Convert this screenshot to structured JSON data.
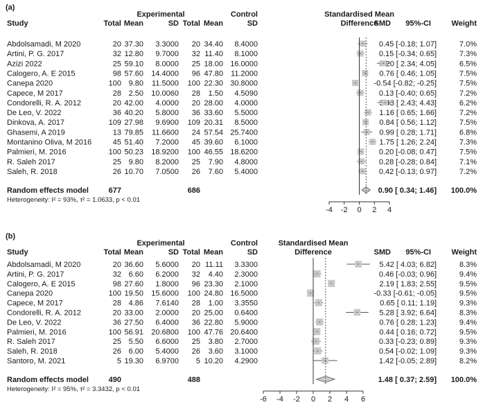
{
  "chart_data": [
    {
      "type": "forest",
      "panel_label": "(a)",
      "headers": {
        "group1": "Experimental",
        "group2": "Control",
        "study": "Study",
        "total": "Total",
        "mean": "Mean",
        "sd": "SD",
        "effect_line1": "Standardised Mean",
        "effect_line2": "Difference",
        "smd": "SMD",
        "ci": "95%-CI",
        "weight": "Weight"
      },
      "studies": [
        {
          "study": "Abdolsamadi, M 2020",
          "e_total": "20",
          "e_mean": "37.30",
          "e_sd": "3.3000",
          "c_total": "20",
          "c_mean": "34.40",
          "c_sd": "8.4000",
          "smd": 0.45,
          "lower": -0.18,
          "upper": 1.07,
          "ci_text": "0.45 [-0.18; 1.07]",
          "weight": "7.0%"
        },
        {
          "study": "Artini, P. G. 2017",
          "e_total": "32",
          "e_mean": "12.80",
          "e_sd": "9.7000",
          "c_total": "32",
          "c_mean": "11.40",
          "c_sd": "8.1000",
          "smd": 0.15,
          "lower": -0.34,
          "upper": 0.65,
          "ci_text": "0.15 [-0.34; 0.65]",
          "weight": "7.3%"
        },
        {
          "study": "Azizi 2022",
          "e_total": "25",
          "e_mean": "59.10",
          "e_sd": "8.0000",
          "c_total": "25",
          "c_mean": "18.00",
          "c_sd": "16.0000",
          "smd": 3.2,
          "lower": 2.34,
          "upper": 4.05,
          "ci_text": "3.20 [ 2.34; 4.05]",
          "weight": "6.5%"
        },
        {
          "study": "Calogero, A. E 2015",
          "e_total": "98",
          "e_mean": "57.60",
          "e_sd": "14.4000",
          "c_total": "96",
          "c_mean": "47.80",
          "c_sd": "11.2000",
          "smd": 0.76,
          "lower": 0.46,
          "upper": 1.05,
          "ci_text": "0.76 [ 0.46; 1.05]",
          "weight": "7.5%"
        },
        {
          "study": "Canepa 2020",
          "e_total": "100",
          "e_mean": "9.80",
          "e_sd": "11.5000",
          "c_total": "100",
          "c_mean": "22.30",
          "c_sd": "30.8000",
          "smd": -0.54,
          "lower": -0.82,
          "upper": -0.25,
          "ci_text": "-0.54 [-0.82; -0.25]",
          "weight": "7.5%"
        },
        {
          "study": "Capece, M 2017",
          "e_total": "28",
          "e_mean": "2.50",
          "e_sd": "10.0060",
          "c_total": "28",
          "c_mean": "1.50",
          "c_sd": "4.5090",
          "smd": 0.13,
          "lower": -0.4,
          "upper": 0.65,
          "ci_text": "0.13 [-0.40; 0.65]",
          "weight": "7.2%"
        },
        {
          "study": "Condorelli, R. A. 2012",
          "e_total": "20",
          "e_mean": "42.00",
          "e_sd": "4.0000",
          "c_total": "20",
          "c_mean": "28.00",
          "c_sd": "4.0000",
          "smd": 3.43,
          "lower": 2.43,
          "upper": 4.43,
          "ci_text": "3.43 [ 2.43; 4.43]",
          "weight": "6.2%"
        },
        {
          "study": "De Leo, V. 2022",
          "e_total": "36",
          "e_mean": "40.20",
          "e_sd": "5.8000",
          "c_total": "36",
          "c_mean": "33.60",
          "c_sd": "5.5000",
          "smd": 1.16,
          "lower": 0.65,
          "upper": 1.66,
          "ci_text": "1.16 [ 0.65; 1.66]",
          "weight": "7.2%"
        },
        {
          "study": "Dinkova, A. 2017",
          "e_total": "109",
          "e_mean": "27.98",
          "e_sd": "9.6900",
          "c_total": "109",
          "c_mean": "20.31",
          "c_sd": "8.5000",
          "smd": 0.84,
          "lower": 0.56,
          "upper": 1.12,
          "ci_text": "0.84 [ 0.56; 1.12]",
          "weight": "7.5%"
        },
        {
          "study": "Ghasemi, A 2019",
          "e_total": "13",
          "e_mean": "79.85",
          "e_sd": "11.6600",
          "c_total": "24",
          "c_mean": "57.54",
          "c_sd": "25.7400",
          "smd": 0.99,
          "lower": 0.28,
          "upper": 1.71,
          "ci_text": "0.99 [ 0.28; 1.71]",
          "weight": "6.8%"
        },
        {
          "study": "Montanino Oliva, M 2016",
          "e_total": "45",
          "e_mean": "51.40",
          "e_sd": "7.2000",
          "c_total": "45",
          "c_mean": "39.60",
          "c_sd": "6.1000",
          "smd": 1.75,
          "lower": 1.26,
          "upper": 2.24,
          "ci_text": "1.75 [ 1.26; 2.24]",
          "weight": "7.3%"
        },
        {
          "study": "Palmieri, M. 2016",
          "e_total": "100",
          "e_mean": "50.23",
          "e_sd": "18.9200",
          "c_total": "100",
          "c_mean": "46.55",
          "c_sd": "18.6200",
          "smd": 0.2,
          "lower": -0.08,
          "upper": 0.47,
          "ci_text": "0.20 [-0.08; 0.47]",
          "weight": "7.5%"
        },
        {
          "study": "R. Saleh 2017",
          "e_total": "25",
          "e_mean": "9.80",
          "e_sd": "8.2000",
          "c_total": "25",
          "c_mean": "7.90",
          "c_sd": "4.8000",
          "smd": 0.28,
          "lower": -0.28,
          "upper": 0.84,
          "ci_text": "0.28 [-0.28; 0.84]",
          "weight": "7.1%"
        },
        {
          "study": "Saleh, R. 2018",
          "e_total": "26",
          "e_mean": "10.70",
          "e_sd": "7.0500",
          "c_total": "26",
          "c_mean": "7.60",
          "c_sd": "5.4000",
          "smd": 0.42,
          "lower": -0.13,
          "upper": 0.97,
          "ci_text": "0.42 [-0.13; 0.97]",
          "weight": "7.2%"
        }
      ],
      "pooled": {
        "label": "Random effects model",
        "e_total": "677",
        "c_total": "686",
        "smd": 0.9,
        "lower": 0.34,
        "upper": 1.46,
        "ci_text": "0.90 [ 0.34; 1.46]",
        "weight": "100.0%"
      },
      "heterogeneity": {
        "prefix": "Heterogeneity: ",
        "i2": "I² = 93%",
        "tau2": "τ² = 1.0633",
        "p": "p < 0.01"
      },
      "xaxis": {
        "ticks": [
          -4,
          -2,
          0,
          2,
          4
        ],
        "xlim": [
          -4,
          4
        ]
      }
    },
    {
      "type": "forest",
      "panel_label": "(b)",
      "headers": {
        "group1": "Experimental",
        "group2": "Control",
        "study": "Study",
        "total": "Total",
        "mean": "Mean",
        "sd": "SD",
        "effect_line1": "Standardised Mean",
        "effect_line2": "Difference",
        "smd": "SMD",
        "ci": "95%-CI",
        "weight": "Weight"
      },
      "studies": [
        {
          "study": "Abdolsamadi, M 2020",
          "e_total": "20",
          "e_mean": "36.60",
          "e_sd": "5.6000",
          "c_total": "20",
          "c_mean": "11.11",
          "c_sd": "3.3300",
          "smd": 5.42,
          "lower": 4.03,
          "upper": 6.82,
          "ci_text": "5.42 [ 4.03; 6.82]",
          "weight": "8.3%"
        },
        {
          "study": "Artini, P. G. 2017",
          "e_total": "32",
          "e_mean": "6.60",
          "e_sd": "6.2000",
          "c_total": "32",
          "c_mean": "4.40",
          "c_sd": "2.3000",
          "smd": 0.46,
          "lower": -0.03,
          "upper": 0.96,
          "ci_text": "0.46 [-0.03; 0.96]",
          "weight": "9.4%"
        },
        {
          "study": "Calogero, A. E 2015",
          "e_total": "98",
          "e_mean": "27.60",
          "e_sd": "1.8000",
          "c_total": "96",
          "c_mean": "23.30",
          "c_sd": "2.1000",
          "smd": 2.19,
          "lower": 1.83,
          "upper": 2.55,
          "ci_text": "2.19 [ 1.83; 2.55]",
          "weight": "9.5%"
        },
        {
          "study": "Canepa 2020",
          "e_total": "100",
          "e_mean": "19.50",
          "e_sd": "15.6000",
          "c_total": "100",
          "c_mean": "24.80",
          "c_sd": "16.5000",
          "smd": -0.33,
          "lower": -0.61,
          "upper": -0.05,
          "ci_text": "-0.33 [-0.61; -0.05]",
          "weight": "9.5%"
        },
        {
          "study": "Capece, M 2017",
          "e_total": "28",
          "e_mean": "4.86",
          "e_sd": "7.6140",
          "c_total": "28",
          "c_mean": "1.00",
          "c_sd": "3.3550",
          "smd": 0.65,
          "lower": 0.11,
          "upper": 1.19,
          "ci_text": "0.65 [ 0.11; 1.19]",
          "weight": "9.3%"
        },
        {
          "study": "Condorelli, R. A. 2012",
          "e_total": "20",
          "e_mean": "33.00",
          "e_sd": "2.0000",
          "c_total": "20",
          "c_mean": "25.00",
          "c_sd": "0.6400",
          "smd": 5.28,
          "lower": 3.92,
          "upper": 6.64,
          "ci_text": "5.28 [ 3.92; 6.64]",
          "weight": "8.3%"
        },
        {
          "study": "De Leo, V. 2022",
          "e_total": "36",
          "e_mean": "27.50",
          "e_sd": "6.4000",
          "c_total": "36",
          "c_mean": "22.80",
          "c_sd": "5.9000",
          "smd": 0.76,
          "lower": 0.28,
          "upper": 1.23,
          "ci_text": "0.76 [ 0.28; 1.23]",
          "weight": "9.4%"
        },
        {
          "study": "Palmieri, M. 2016",
          "e_total": "100",
          "e_mean": "56.91",
          "e_sd": "20.6800",
          "c_total": "100",
          "c_mean": "47.76",
          "c_sd": "20.6400",
          "smd": 0.44,
          "lower": 0.16,
          "upper": 0.72,
          "ci_text": "0.44 [ 0.16; 0.72]",
          "weight": "9.5%"
        },
        {
          "study": "R. Saleh 2017",
          "e_total": "25",
          "e_mean": "5.50",
          "e_sd": "6.6000",
          "c_total": "25",
          "c_mean": "3.80",
          "c_sd": "2.7000",
          "smd": 0.33,
          "lower": -0.23,
          "upper": 0.89,
          "ci_text": "0.33 [-0.23; 0.89]",
          "weight": "9.3%"
        },
        {
          "study": "Saleh, R. 2018",
          "e_total": "26",
          "e_mean": "6.00",
          "e_sd": "5.4000",
          "c_total": "26",
          "c_mean": "3.60",
          "c_sd": "3.1000",
          "smd": 0.54,
          "lower": -0.02,
          "upper": 1.09,
          "ci_text": "0.54 [-0.02; 1.09]",
          "weight": "9.3%"
        },
        {
          "study": "Santoro, M. 2021",
          "e_total": "5",
          "e_mean": "19.30",
          "e_sd": "6.9700",
          "c_total": "5",
          "c_mean": "10.20",
          "c_sd": "4.2900",
          "smd": 1.42,
          "lower": -0.05,
          "upper": 2.89,
          "ci_text": "1.42 [-0.05; 2.89]",
          "weight": "8.2%"
        }
      ],
      "pooled": {
        "label": "Random effects model",
        "e_total": "490",
        "c_total": "488",
        "smd": 1.48,
        "lower": 0.37,
        "upper": 2.59,
        "ci_text": "1.48 [ 0.37; 2.59]",
        "weight": "100.0%"
      },
      "heterogeneity": {
        "prefix": "Heterogeneity: ",
        "i2": "I² = 95%",
        "tau2": "τ² = 3.3432",
        "p": "p < 0.01"
      },
      "xaxis": {
        "ticks": [
          -6,
          -4,
          -2,
          0,
          2,
          4,
          6
        ],
        "xlim": [
          -6,
          6
        ]
      }
    }
  ],
  "colors": {
    "box": "#c8c8c8",
    "line": "#555555",
    "ref": "#333333",
    "pooled_fill": "#c8c8c8"
  }
}
